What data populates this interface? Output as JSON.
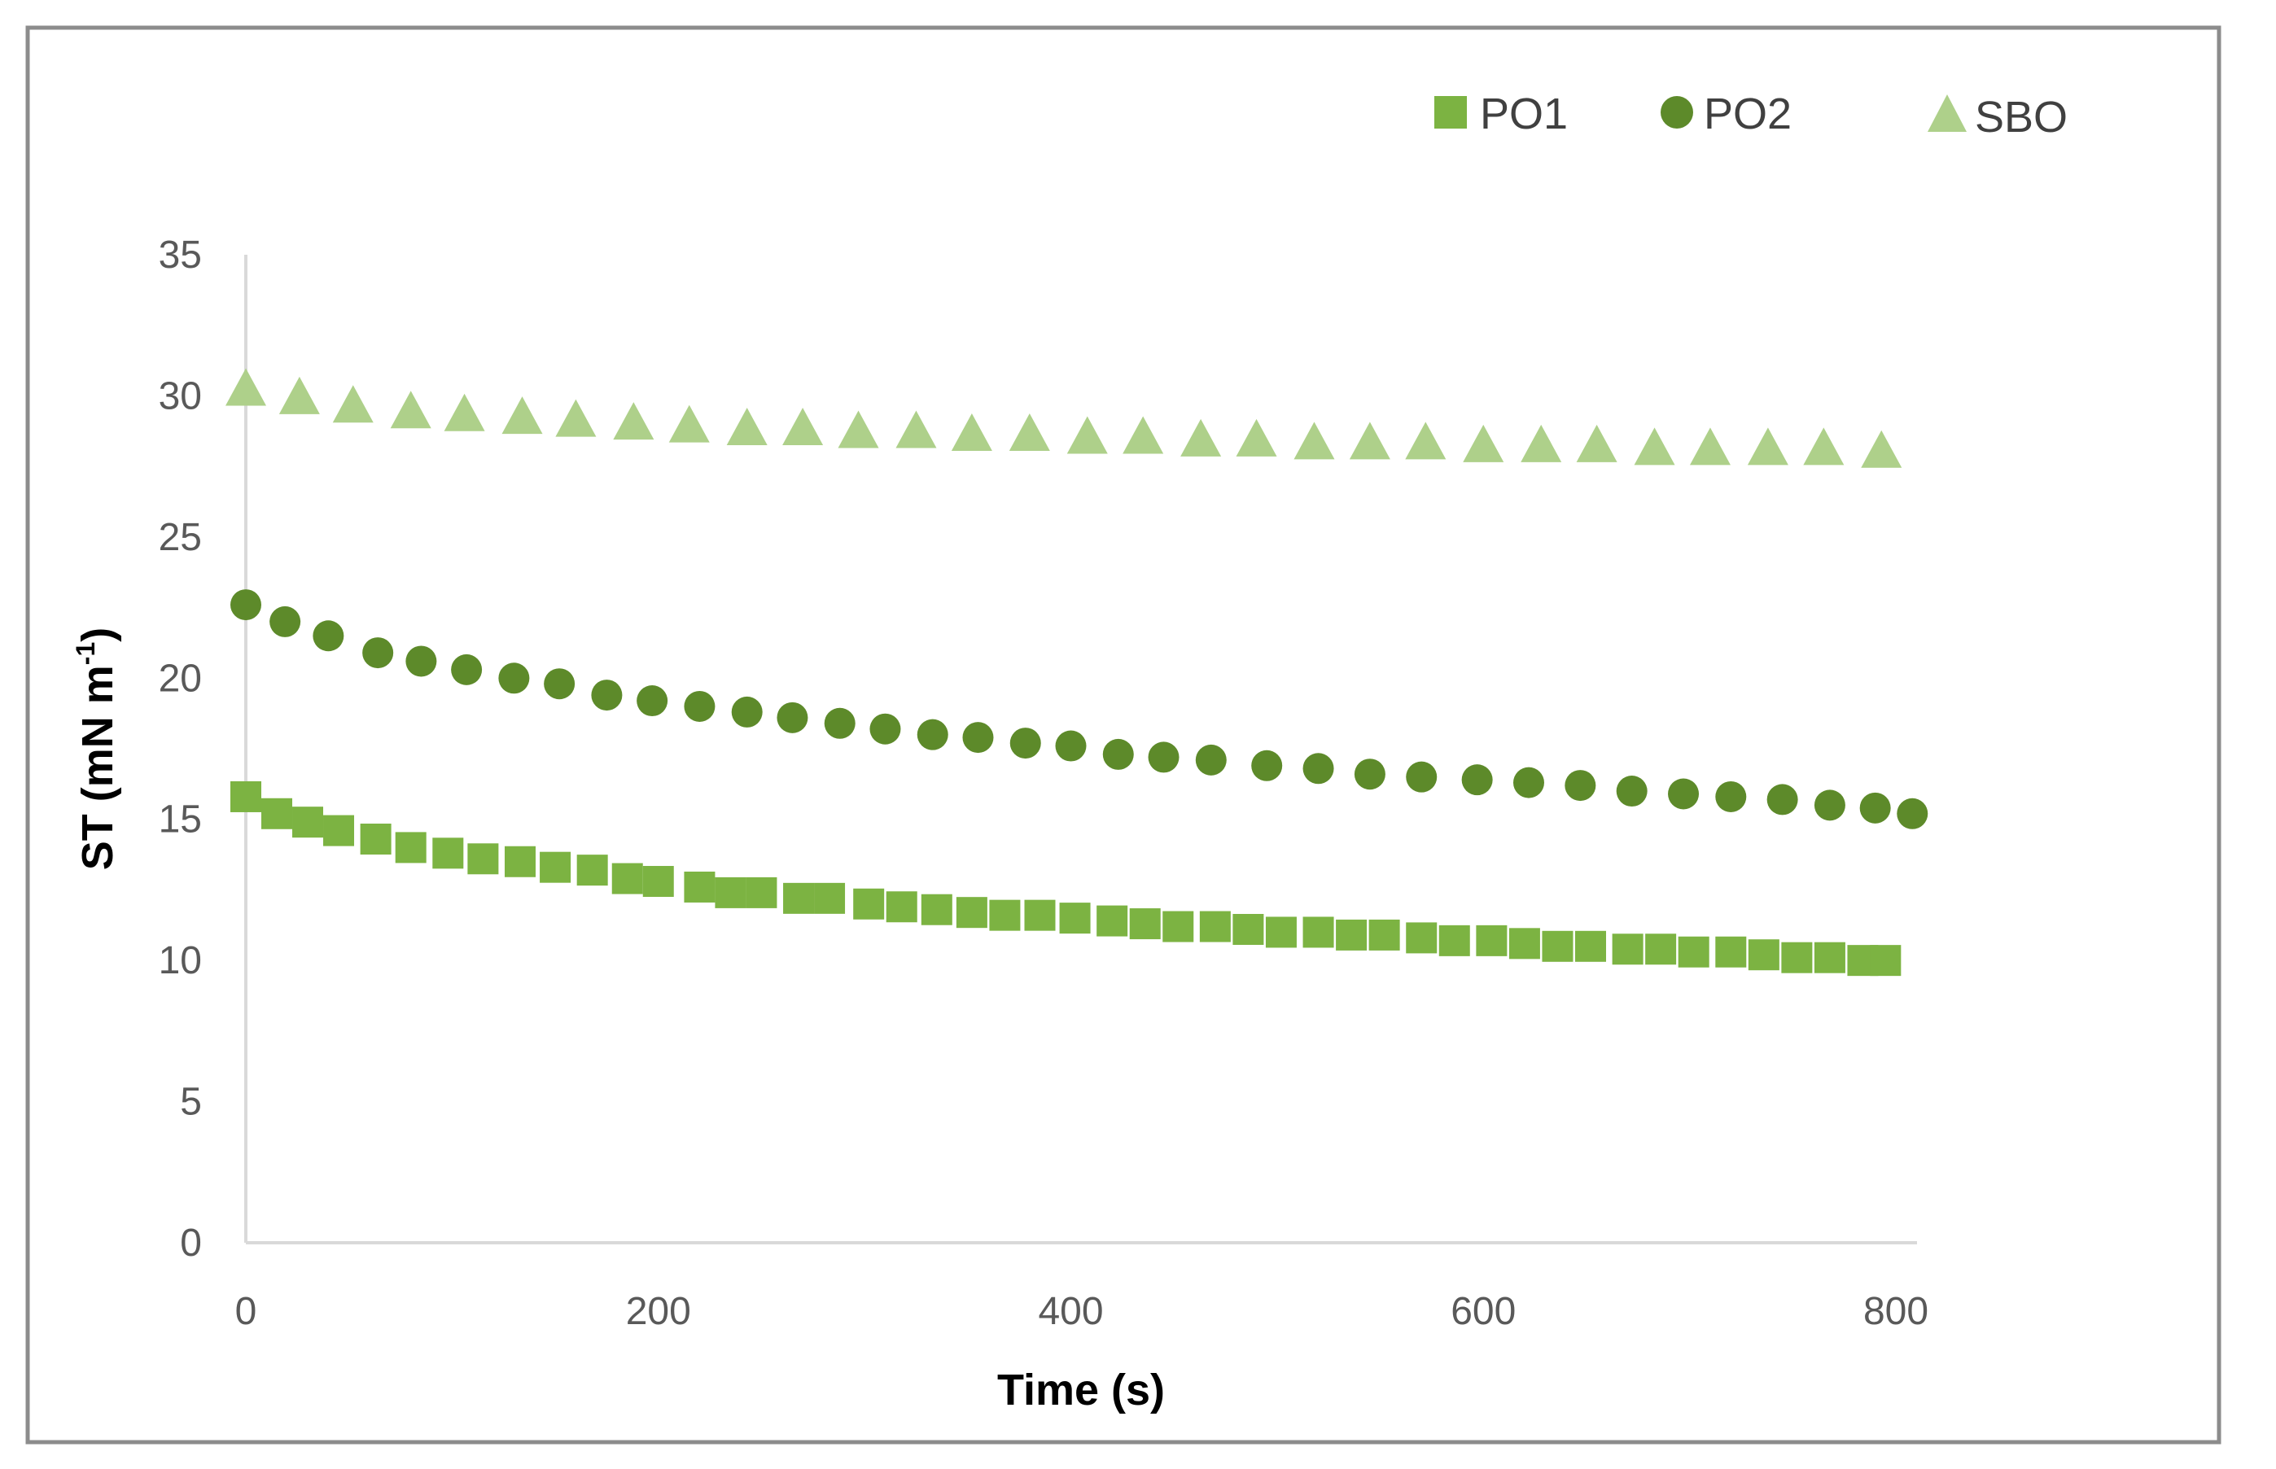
{
  "chart_data": {
    "type": "scatter",
    "title": "",
    "xlabel": "Time (s)",
    "ylabel_main": "ST (mN m",
    "ylabel_sup": "-1",
    "ylabel_close": ")",
    "xlim": [
      0,
      800
    ],
    "ylim": [
      0,
      35
    ],
    "x_ticks": [
      0,
      200,
      400,
      600,
      800
    ],
    "y_ticks": [
      0,
      5,
      10,
      15,
      20,
      25,
      30,
      35
    ],
    "x_tick_labels": [
      "0",
      "200",
      "400",
      "600",
      "800"
    ],
    "y_tick_labels": [
      "0",
      "5",
      "10",
      "15",
      "20",
      "25",
      "30",
      "35"
    ],
    "grid": false,
    "legend_position": "top-right",
    "series": [
      {
        "name": "PO1",
        "marker": "square",
        "color": "#7cb342",
        "points": [
          [
            0,
            15.8
          ],
          [
            15,
            15.2
          ],
          [
            30,
            14.9
          ],
          [
            45,
            14.6
          ],
          [
            63,
            14.3
          ],
          [
            80,
            14.0
          ],
          [
            98,
            13.8
          ],
          [
            115,
            13.6
          ],
          [
            133,
            13.5
          ],
          [
            150,
            13.3
          ],
          [
            168,
            13.2
          ],
          [
            185,
            12.9
          ],
          [
            200,
            12.8
          ],
          [
            220,
            12.6
          ],
          [
            235,
            12.4
          ],
          [
            250,
            12.4
          ],
          [
            268,
            12.2
          ],
          [
            283,
            12.2
          ],
          [
            302,
            12.0
          ],
          [
            318,
            11.9
          ],
          [
            335,
            11.8
          ],
          [
            352,
            11.7
          ],
          [
            368,
            11.6
          ],
          [
            385,
            11.6
          ],
          [
            402,
            11.5
          ],
          [
            420,
            11.4
          ],
          [
            436,
            11.3
          ],
          [
            452,
            11.2
          ],
          [
            470,
            11.2
          ],
          [
            486,
            11.1
          ],
          [
            502,
            11.0
          ],
          [
            520,
            11.0
          ],
          [
            536,
            10.9
          ],
          [
            552,
            10.9
          ],
          [
            570,
            10.8
          ],
          [
            586,
            10.7
          ],
          [
            604,
            10.7
          ],
          [
            620,
            10.6
          ],
          [
            636,
            10.5
          ],
          [
            652,
            10.5
          ],
          [
            670,
            10.4
          ],
          [
            686,
            10.4
          ],
          [
            702,
            10.3
          ],
          [
            720,
            10.3
          ],
          [
            736,
            10.2
          ],
          [
            752,
            10.1
          ],
          [
            768,
            10.1
          ],
          [
            784,
            10.0
          ],
          [
            795,
            10.0
          ]
        ]
      },
      {
        "name": "PO2",
        "marker": "circle",
        "color": "#5d8a2a",
        "points": [
          [
            0,
            22.6
          ],
          [
            19,
            22.0
          ],
          [
            40,
            21.5
          ],
          [
            64,
            20.9
          ],
          [
            85,
            20.6
          ],
          [
            107,
            20.3
          ],
          [
            130,
            20.0
          ],
          [
            152,
            19.8
          ],
          [
            175,
            19.4
          ],
          [
            197,
            19.2
          ],
          [
            220,
            19.0
          ],
          [
            243,
            18.8
          ],
          [
            265,
            18.6
          ],
          [
            288,
            18.4
          ],
          [
            310,
            18.2
          ],
          [
            333,
            18.0
          ],
          [
            355,
            17.9
          ],
          [
            378,
            17.7
          ],
          [
            400,
            17.6
          ],
          [
            423,
            17.3
          ],
          [
            445,
            17.2
          ],
          [
            468,
            17.1
          ],
          [
            495,
            16.9
          ],
          [
            520,
            16.8
          ],
          [
            545,
            16.6
          ],
          [
            570,
            16.5
          ],
          [
            597,
            16.4
          ],
          [
            622,
            16.3
          ],
          [
            647,
            16.2
          ],
          [
            672,
            16.0
          ],
          [
            697,
            15.9
          ],
          [
            720,
            15.8
          ],
          [
            745,
            15.7
          ],
          [
            768,
            15.5
          ],
          [
            790,
            15.4
          ],
          [
            808,
            15.2
          ]
        ]
      },
      {
        "name": "SBO",
        "marker": "triangle",
        "color": "#aed08a",
        "points": [
          [
            0,
            30.2
          ],
          [
            26,
            29.9
          ],
          [
            52,
            29.6
          ],
          [
            80,
            29.4
          ],
          [
            106,
            29.3
          ],
          [
            134,
            29.2
          ],
          [
            160,
            29.1
          ],
          [
            188,
            29.0
          ],
          [
            215,
            28.9
          ],
          [
            243,
            28.8
          ],
          [
            270,
            28.8
          ],
          [
            297,
            28.7
          ],
          [
            325,
            28.7
          ],
          [
            352,
            28.6
          ],
          [
            380,
            28.6
          ],
          [
            408,
            28.5
          ],
          [
            435,
            28.5
          ],
          [
            463,
            28.4
          ],
          [
            490,
            28.4
          ],
          [
            518,
            28.3
          ],
          [
            545,
            28.3
          ],
          [
            572,
            28.3
          ],
          [
            600,
            28.2
          ],
          [
            628,
            28.2
          ],
          [
            655,
            28.2
          ],
          [
            683,
            28.1
          ],
          [
            710,
            28.1
          ],
          [
            738,
            28.1
          ],
          [
            765,
            28.1
          ],
          [
            793,
            28.0
          ]
        ]
      }
    ]
  }
}
